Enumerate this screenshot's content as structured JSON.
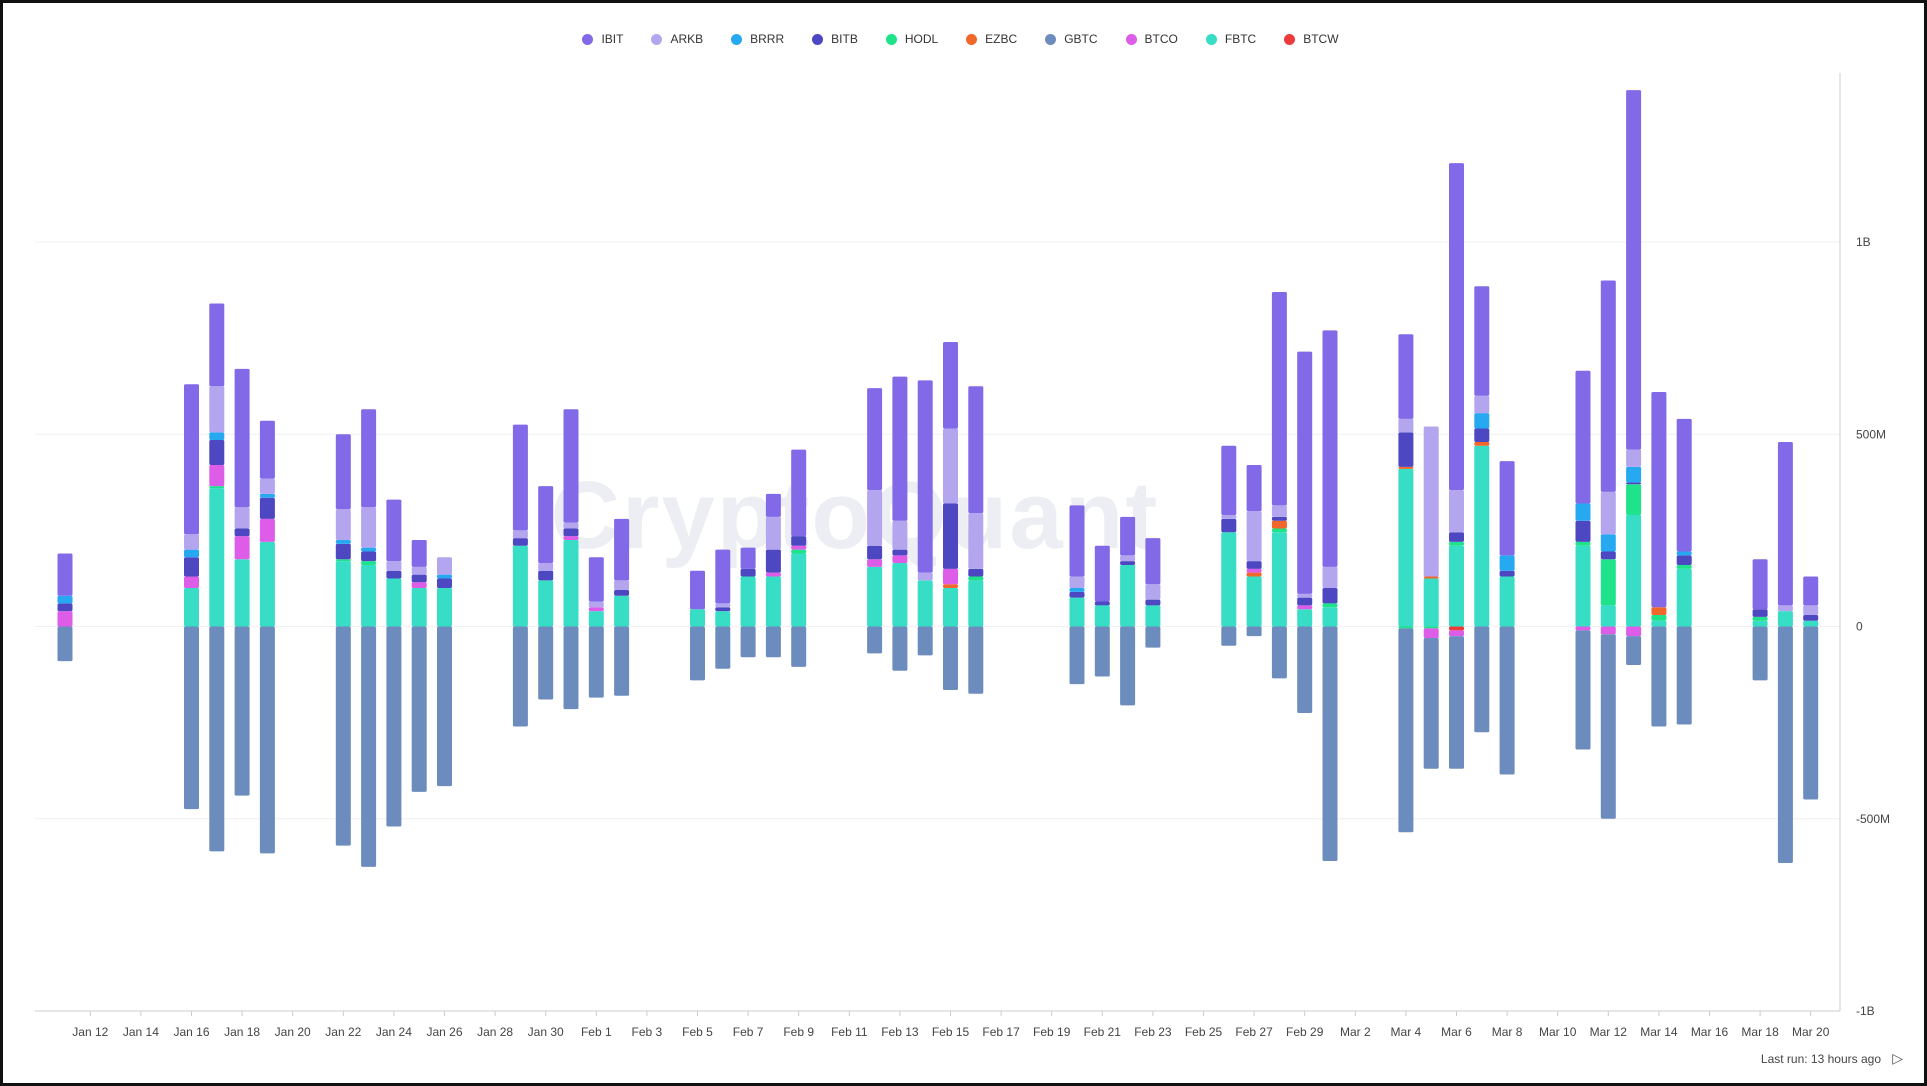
{
  "watermark": "CryptoQuant",
  "footer": {
    "last_run": "Last run: 13 hours ago",
    "play_icon": "play-icon"
  },
  "colors": {
    "IBIT": "#8169e8",
    "ARKB": "#b3a6ef",
    "BRRR": "#27a9f2",
    "BITB": "#4d47c2",
    "HODL": "#1ee38a",
    "EZBC": "#f2672a",
    "GBTC": "#6c8cbd",
    "BTCO": "#dd5de8",
    "FBTC": "#38ddc6",
    "BTCW": "#ec3b3b",
    "grid": "#f0f0f0",
    "axis": "#cccccc"
  },
  "chart_data": {
    "type": "bar",
    "stacked": true,
    "title": "",
    "xlabel": "",
    "ylabel": "",
    "ylim": [
      -1000000000,
      1500000000
    ],
    "y_ticks": [
      1000000000,
      500000000,
      0,
      -500000000,
      -1000000000
    ],
    "y_tick_labels": [
      "1B",
      "500M",
      "0",
      "-500M",
      "-1B"
    ],
    "y_axis_position": "right",
    "legend_position": "top",
    "grid": true,
    "series_order": [
      "IBIT",
      "ARKB",
      "BRRR",
      "BITB",
      "HODL",
      "EZBC",
      "GBTC",
      "BTCO",
      "FBTC",
      "BTCW"
    ],
    "x_tick_labels": [
      "Jan 12",
      "Jan 14",
      "Jan 16",
      "Jan 18",
      "Jan 20",
      "Jan 22",
      "Jan 24",
      "Jan 26",
      "Jan 28",
      "Jan 30",
      "Feb 1",
      "Feb 3",
      "Feb 5",
      "Feb 7",
      "Feb 9",
      "Feb 11",
      "Feb 13",
      "Feb 15",
      "Feb 17",
      "Feb 19",
      "Feb 21",
      "Feb 23",
      "Feb 25",
      "Feb 27",
      "Feb 29",
      "Mar 2",
      "Mar 4",
      "Mar 6",
      "Mar 8",
      "Mar 10",
      "Mar 12",
      "Mar 14",
      "Mar 16",
      "Mar 18",
      "Mar 20"
    ],
    "dates": [
      "Jan 11",
      "Jan 12",
      "Jan 13",
      "Jan 14",
      "Jan 15",
      "Jan 16",
      "Jan 17",
      "Jan 18",
      "Jan 19",
      "Jan 20",
      "Jan 21",
      "Jan 22",
      "Jan 23",
      "Jan 24",
      "Jan 25",
      "Jan 26",
      "Jan 27",
      "Jan 28",
      "Jan 29",
      "Jan 30",
      "Jan 31",
      "Feb 1",
      "Feb 2",
      "Feb 3",
      "Feb 4",
      "Feb 5",
      "Feb 6",
      "Feb 7",
      "Feb 8",
      "Feb 9",
      "Feb 10",
      "Feb 11",
      "Feb 12",
      "Feb 13",
      "Feb 14",
      "Feb 15",
      "Feb 16",
      "Feb 17",
      "Feb 18",
      "Feb 19",
      "Feb 20",
      "Feb 21",
      "Feb 22",
      "Feb 23",
      "Feb 24",
      "Feb 25",
      "Feb 26",
      "Feb 27",
      "Feb 28",
      "Feb 29",
      "Mar 1",
      "Mar 2",
      "Mar 3",
      "Mar 4",
      "Mar 5",
      "Mar 6",
      "Mar 7",
      "Mar 8",
      "Mar 9",
      "Mar 10",
      "Mar 11",
      "Mar 12",
      "Mar 13",
      "Mar 14",
      "Mar 15",
      "Mar 16",
      "Mar 17",
      "Mar 18",
      "Mar 19",
      "Mar 20",
      "Mar 21"
    ],
    "days": [
      {
        "date": "Jan 11",
        "GBTC": -90,
        "BTCO": 40,
        "BITB": 20,
        "BRRR": 20,
        "IBIT": 110
      },
      {
        "date": "Jan 16",
        "GBTC": -475,
        "FBTC": 100,
        "BTCO": 30,
        "BITB": 50,
        "BRRR": 20,
        "ARKB": 40,
        "IBIT": 390
      },
      {
        "date": "Jan 17",
        "GBTC": -585,
        "FBTC": 360,
        "HODL": 5,
        "BTCO": 55,
        "BITB": 65,
        "BRRR": 20,
        "ARKB": 120,
        "IBIT": 215
      },
      {
        "date": "Jan 18",
        "GBTC": -440,
        "FBTC": 175,
        "BTCO": 60,
        "BITB": 20,
        "ARKB": 55,
        "IBIT": 360
      },
      {
        "date": "Jan 19",
        "GBTC": -590,
        "FBTC": 220,
        "BTCO": 60,
        "BITB": 55,
        "BRRR": 10,
        "ARKB": 40,
        "IBIT": 150
      },
      {
        "date": "Jan 22",
        "GBTC": -570,
        "FBTC": 170,
        "HODL": 5,
        "BITB": 40,
        "BRRR": 10,
        "ARKB": 80,
        "IBIT": 195
      },
      {
        "date": "Jan 23",
        "GBTC": -625,
        "FBTC": 160,
        "HODL": 10,
        "BITB": 25,
        "BRRR": 10,
        "ARKB": 105,
        "IBIT": 255
      },
      {
        "date": "Jan 24",
        "GBTC": -520,
        "FBTC": 125,
        "BITB": 20,
        "ARKB": 25,
        "IBIT": 160
      },
      {
        "date": "Jan 25",
        "GBTC": -430,
        "FBTC": 100,
        "BTCO": 15,
        "BITB": 20,
        "ARKB": 20,
        "IBIT": 70
      },
      {
        "date": "Jan 26",
        "GBTC": -415,
        "FBTC": 100,
        "BITB": 25,
        "BRRR": 10,
        "ARKB": 45
      },
      {
        "date": "Jan 29",
        "GBTC": -260,
        "FBTC": 210,
        "BITB": 20,
        "ARKB": 20,
        "IBIT": 275
      },
      {
        "date": "Jan 30",
        "GBTC": -190,
        "FBTC": 120,
        "BITB": 25,
        "ARKB": 20,
        "IBIT": 200
      },
      {
        "date": "Jan 31",
        "GBTC": -215,
        "FBTC": 225,
        "BTCO": 10,
        "BITB": 20,
        "ARKB": 15,
        "IBIT": 295
      },
      {
        "date": "Feb 1",
        "GBTC": -185,
        "FBTC": 40,
        "BTCO": 10,
        "ARKB": 15,
        "IBIT": 115
      },
      {
        "date": "Feb 2",
        "GBTC": -180,
        "FBTC": 80,
        "BITB": 15,
        "ARKB": 25,
        "IBIT": 160
      },
      {
        "date": "Feb 5",
        "GBTC": -140,
        "FBTC": 45,
        "IBIT": 100
      },
      {
        "date": "Feb 6",
        "GBTC": -110,
        "FBTC": 40,
        "BITB": 10,
        "ARKB": 10,
        "IBIT": 140
      },
      {
        "date": "Feb 7",
        "GBTC": -80,
        "FBTC": 130,
        "BITB": 20,
        "IBIT": 55
      },
      {
        "date": "Feb 8",
        "GBTC": -80,
        "FBTC": 130,
        "BTCO": 10,
        "BITB": 60,
        "ARKB": 85,
        "IBIT": 60
      },
      {
        "date": "Feb 9",
        "GBTC": -105,
        "FBTC": 190,
        "BTCO": 10,
        "HODL": 10,
        "BITB": 25,
        "IBIT": 225
      },
      {
        "date": "Feb 12",
        "GBTC": -70,
        "BTCO": 20,
        "FBTC": 155,
        "BITB": 35,
        "ARKB": 145,
        "IBIT": 265
      },
      {
        "date": "Feb 13",
        "GBTC": -115,
        "BTCO": 20,
        "FBTC": 165,
        "BITB": 15,
        "ARKB": 75,
        "IBIT": 375
      },
      {
        "date": "Feb 14",
        "GBTC": -75,
        "FBTC": 120,
        "ARKB": 20,
        "IBIT": 500
      },
      {
        "date": "Feb 15",
        "GBTC": -165,
        "BTCO": 40,
        "FBTC": 100,
        "EZBC": 10,
        "BITB": 170,
        "ARKB": 195,
        "IBIT": 225
      },
      {
        "date": "Feb 16",
        "GBTC": -175,
        "FBTC": 120,
        "HODL": 10,
        "BITB": 20,
        "ARKB": 145,
        "IBIT": 330
      },
      {
        "date": "Feb 20",
        "GBTC": -150,
        "FBTC": 75,
        "BITB": 15,
        "BRRR": 10,
        "ARKB": 30,
        "IBIT": 185
      },
      {
        "date": "Feb 21",
        "GBTC": -130,
        "FBTC": 55,
        "BITB": 10,
        "IBIT": 145
      },
      {
        "date": "Feb 22",
        "GBTC": -205,
        "FBTC": 160,
        "BITB": 10,
        "ARKB": 15,
        "IBIT": 100
      },
      {
        "date": "Feb 23",
        "GBTC": -55,
        "FBTC": 55,
        "BITB": 15,
        "ARKB": 40,
        "IBIT": 120
      },
      {
        "date": "Feb 26",
        "GBTC": -50,
        "FBTC": 245,
        "BITB": 35,
        "ARKB": 10,
        "IBIT": 180
      },
      {
        "date": "Feb 27",
        "GBTC": -25,
        "FBTC": 130,
        "BTCO": 10,
        "EZBC": 10,
        "BITB": 20,
        "ARKB": 130,
        "IBIT": 120
      },
      {
        "date": "Feb 28",
        "GBTC": -135,
        "FBTC": 245,
        "EZBC": 20,
        "HODL": 10,
        "BITB": 10,
        "ARKB": 30,
        "IBIT": 555
      },
      {
        "date": "Feb 29",
        "GBTC": -225,
        "FBTC": 45,
        "BTCO": 10,
        "BITB": 20,
        "ARKB": 10,
        "IBIT": 630
      },
      {
        "date": "Mar 1",
        "GBTC": -610,
        "FBTC": 50,
        "HODL": 10,
        "BITB": 40,
        "ARKB": 55,
        "IBIT": 615
      },
      {
        "date": "Mar 4",
        "GBTC": -530,
        "HODL": -5,
        "FBTC": 410,
        "EZBC": 5,
        "BITB": 90,
        "ARKB": 35,
        "IBIT": 220
      },
      {
        "date": "Mar 5",
        "GBTC": -340,
        "HODL": -5,
        "BTCO": -25,
        "FBTC": 125,
        "EZBC": 5,
        "ARKB": 390
      },
      {
        "date": "Mar 6",
        "GBTC": -345,
        "BTCO": -15,
        "BTCW": -10,
        "FBTC": 210,
        "HODL": 10,
        "BITB": 25,
        "ARKB": 110,
        "IBIT": 850
      },
      {
        "date": "Mar 7",
        "GBTC": -275,
        "FBTC": 470,
        "EZBC": 10,
        "BITB": 35,
        "BRRR": 40,
        "ARKB": 45,
        "IBIT": 285
      },
      {
        "date": "Mar 8",
        "GBTC": -385,
        "FBTC": 130,
        "BITB": 15,
        "BRRR": 40,
        "IBIT": 245
      },
      {
        "date": "Mar 11",
        "GBTC": -310,
        "BTCO": -10,
        "FBTC": 210,
        "HODL": 10,
        "BITB": 55,
        "BRRR": 45,
        "IBIT": 345
      },
      {
        "date": "Mar 12",
        "GBTC": -480,
        "BTCO": -20,
        "FBTC": 55,
        "HODL": 120,
        "BITB": 20,
        "BRRR": 45,
        "ARKB": 110,
        "IBIT": 550
      },
      {
        "date": "Mar 13",
        "GBTC": -75,
        "BTCO": -25,
        "FBTC": 290,
        "HODL": 80,
        "BITB": 5,
        "BRRR": 40,
        "ARKB": 45,
        "IBIT": 935
      },
      {
        "date": "Mar 14",
        "GBTC": -260,
        "FBTC": 15,
        "EZBC": 20,
        "HODL": 15,
        "IBIT": 560
      },
      {
        "date": "Mar 15",
        "GBTC": -255,
        "FBTC": 150,
        "HODL": 10,
        "BITB": 25,
        "BRRR": 10,
        "IBIT": 345
      },
      {
        "date": "Mar 18",
        "GBTC": -140,
        "FBTC": 15,
        "HODL": 10,
        "BITB": 20,
        "IBIT": 130
      },
      {
        "date": "Mar 19",
        "GBTC": -615,
        "FBTC": 40,
        "ARKB": 15,
        "IBIT": 425
      },
      {
        "date": "Mar 20",
        "GBTC": -450,
        "FBTC": 15,
        "BITB": 15,
        "ARKB": 25,
        "IBIT": 75
      }
    ],
    "value_unit": "M"
  }
}
